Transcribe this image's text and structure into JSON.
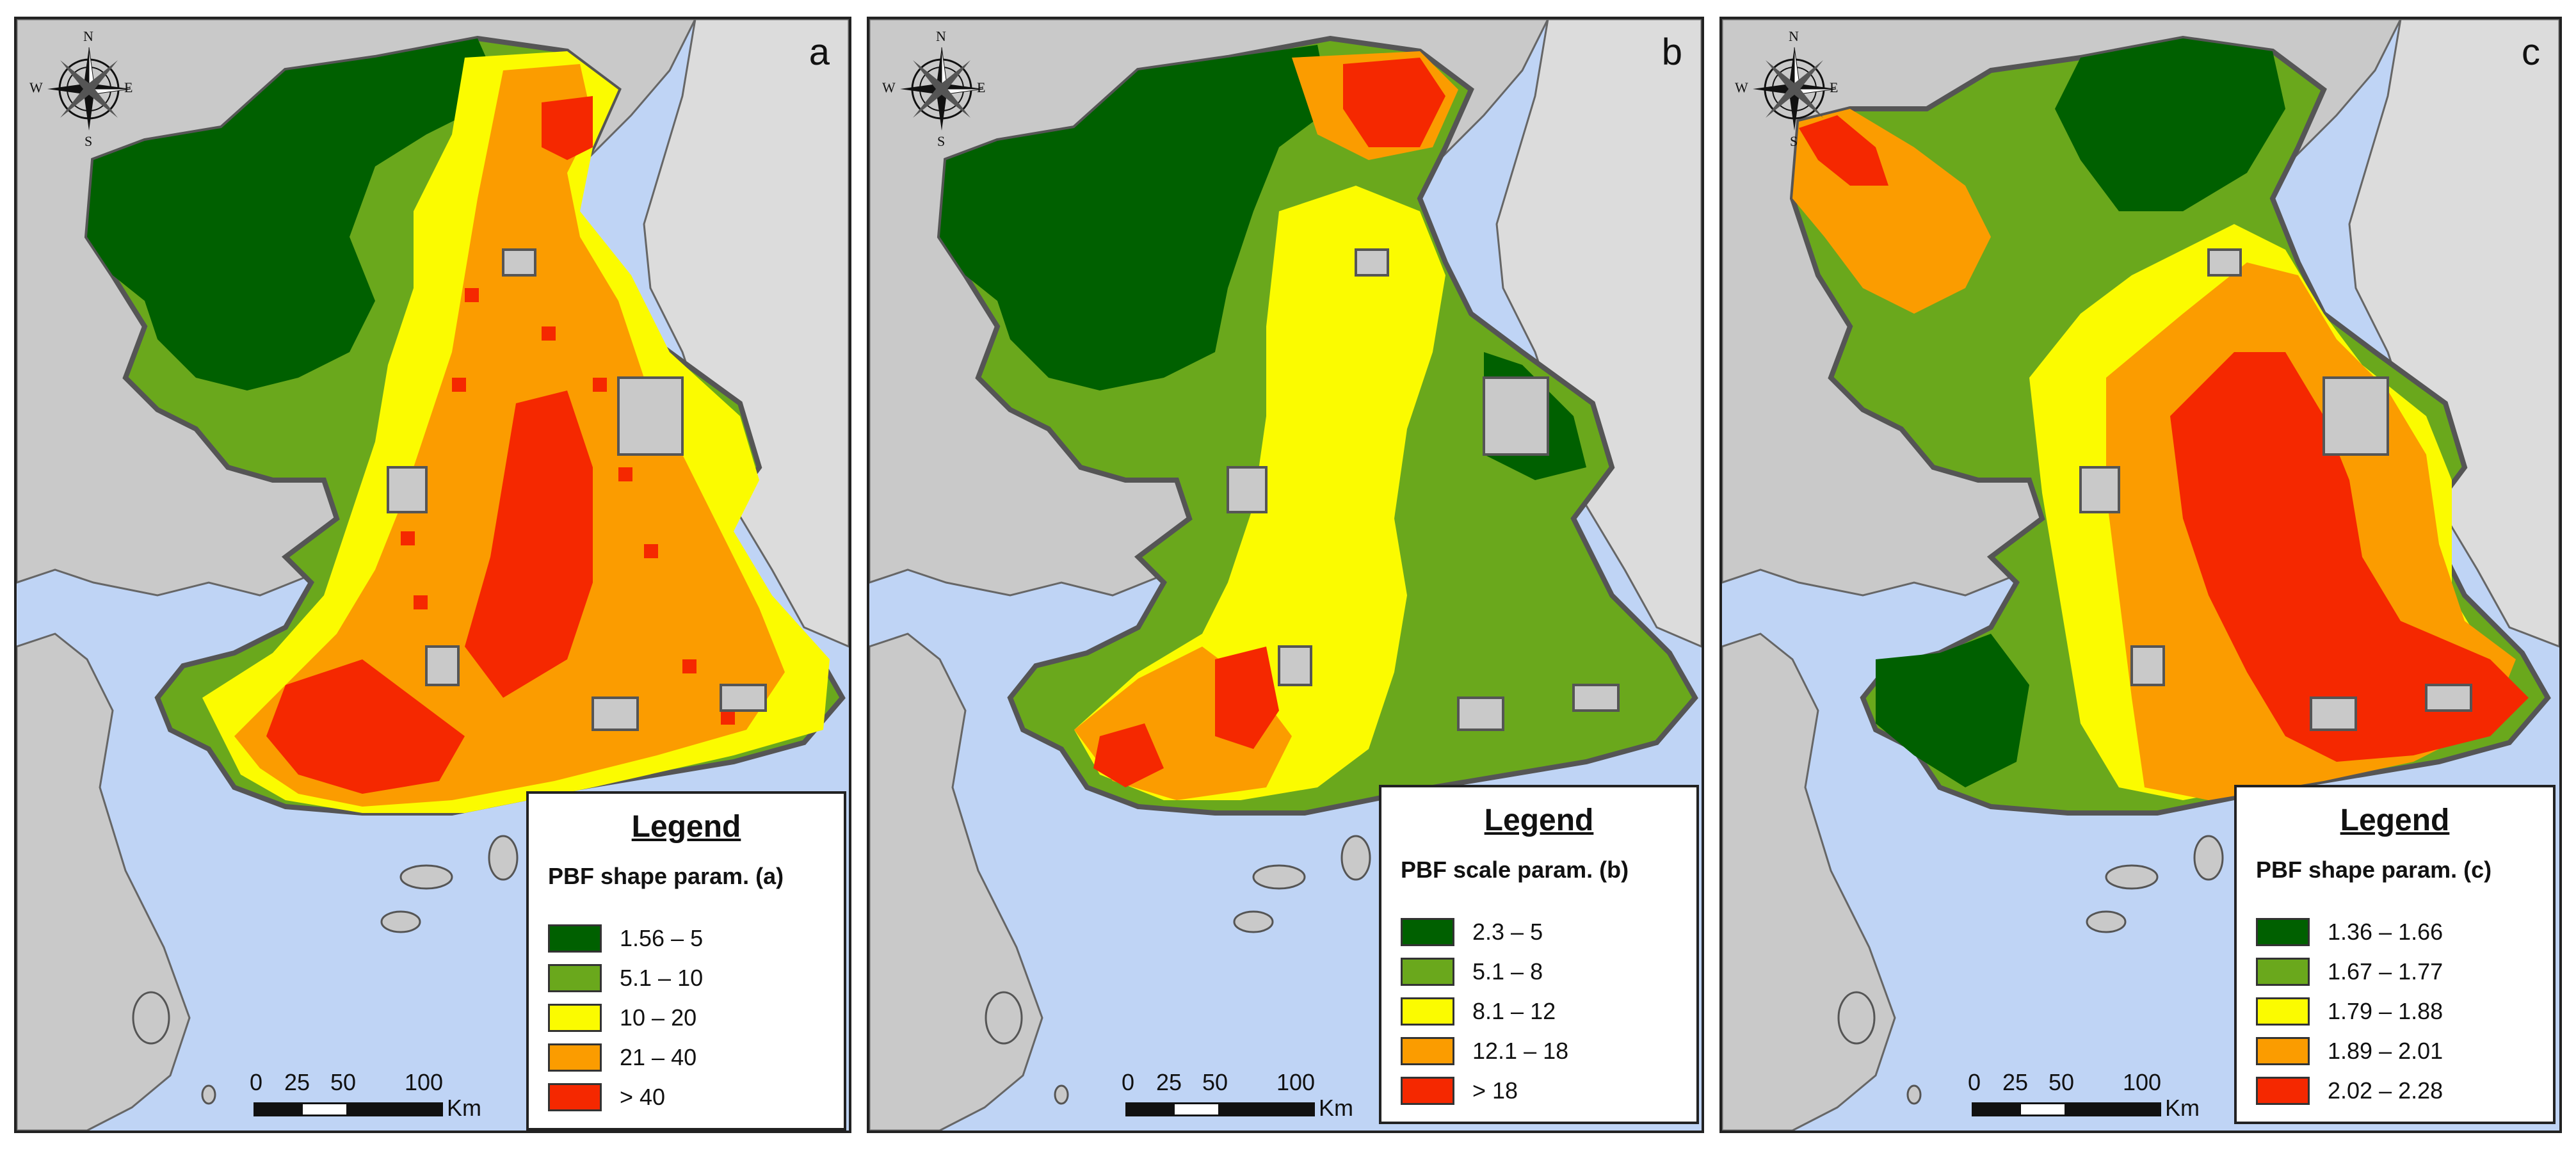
{
  "colors": {
    "sea": "#bfd4f5",
    "land_grey": "#c9c9c9",
    "land_outer": "#dcdcdc",
    "class1": "#006000",
    "class2": "#6aa81c",
    "class3": "#fbfb00",
    "class4": "#fb9c00",
    "class5": "#f52800"
  },
  "compass": {
    "n": "N",
    "s": "S",
    "e": "E",
    "w": "W"
  },
  "panels": [
    {
      "letter": "a",
      "legend": {
        "title": "Legend",
        "subtitle": "PBF shape param. (a)",
        "items": [
          "1.56 – 5",
          "5.1 – 10",
          "10 – 20",
          "21 – 40",
          "> 40"
        ]
      },
      "scale": {
        "labels": [
          "0",
          "25",
          "50",
          "100"
        ],
        "unit": "Km"
      }
    },
    {
      "letter": "b",
      "legend": {
        "title": "Legend",
        "subtitle": "PBF scale param. (b)",
        "items": [
          "2.3 – 5",
          "5.1 – 8",
          "8.1 – 12",
          "12.1 – 18",
          "> 18"
        ]
      },
      "scale": {
        "labels": [
          "0",
          "25",
          "50",
          "100"
        ],
        "unit": "Km"
      }
    },
    {
      "letter": "c",
      "legend": {
        "title": "Legend",
        "subtitle": "PBF shape param. (c)",
        "items": [
          "1.36 – 1.66",
          "1.67 – 1.77",
          "1.79 – 1.88",
          "1.89 – 2.01",
          "2.02 – 2.28"
        ]
      },
      "scale": {
        "labels": [
          "0",
          "25",
          "50",
          "100"
        ],
        "unit": "Km"
      }
    }
  ]
}
